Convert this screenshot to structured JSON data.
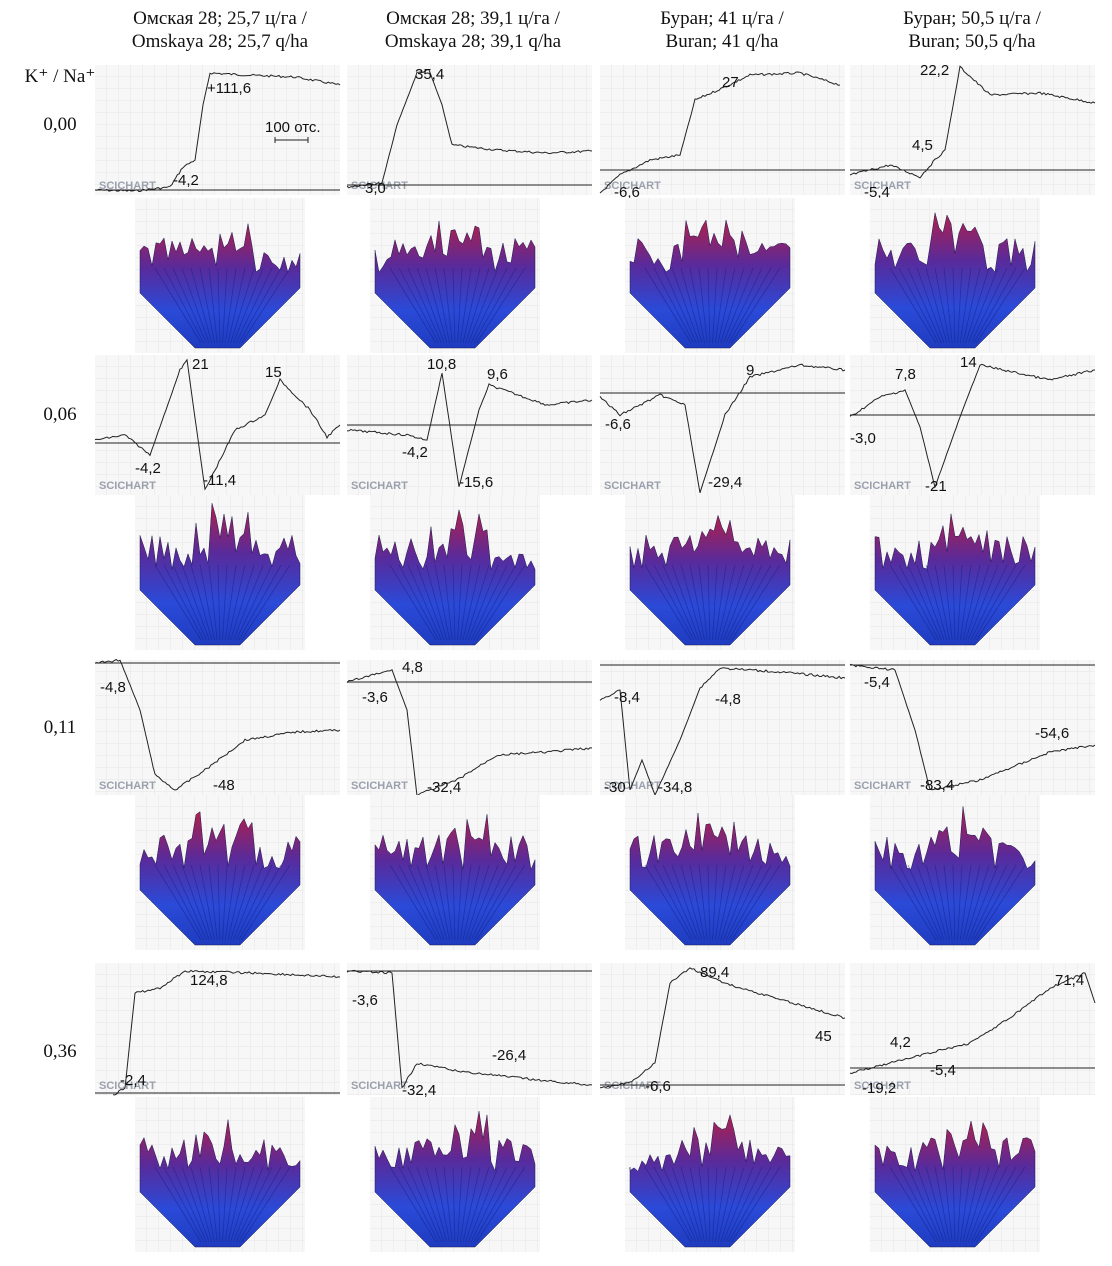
{
  "columns": [
    {
      "line1": "Омская 28; 25,7 ц/га /",
      "line2": "Omskaya 28; 25,7 q/ha"
    },
    {
      "line1": "Омская 28; 39,1 ц/га /",
      "line2": "Omskaya 28; 39,1 q/ha"
    },
    {
      "line1": "Буран; 41 ц/га /",
      "line2": "Buran; 41 q/ha"
    },
    {
      "line1": "Буран; 50,5 ц/га /",
      "line2": "Buran; 50,5 q/ha"
    }
  ],
  "row_header": "K⁺ / Na⁺",
  "scale_bar": "100 отс.",
  "watermark": "SCICHART",
  "rows": [
    {
      "label": "0,00",
      "panels": [
        {
          "annotations": [
            "+111,6",
            "-4,2"
          ]
        },
        {
          "annotations": [
            "35,4",
            "3,0"
          ]
        },
        {
          "annotations": [
            "27",
            "-6,6"
          ]
        },
        {
          "annotations": [
            "22,2",
            "4,5",
            "-5,4"
          ]
        }
      ]
    },
    {
      "label": "0,06",
      "panels": [
        {
          "annotations": [
            "21",
            "15",
            "-4,2",
            "-11,4"
          ]
        },
        {
          "annotations": [
            "10,8",
            "9,6",
            "-4,2",
            "-15,6"
          ]
        },
        {
          "annotations": [
            "9",
            "-6,6",
            "-29,4"
          ]
        },
        {
          "annotations": [
            "7,8",
            "14",
            "-3,0",
            "-21"
          ]
        }
      ]
    },
    {
      "label": "0,11",
      "panels": [
        {
          "annotations": [
            "-4,8",
            "-48"
          ]
        },
        {
          "annotations": [
            "4,8",
            "-3,6",
            "-32,4"
          ]
        },
        {
          "annotations": [
            "-8,4",
            "-4,8",
            "-30",
            "-34,8"
          ]
        },
        {
          "annotations": [
            "-5,4",
            "-54,6",
            "-83,4"
          ]
        }
      ]
    },
    {
      "label": "0,36",
      "panels": [
        {
          "annotations": [
            "124,8",
            "-2,4"
          ]
        },
        {
          "annotations": [
            "-3,6",
            "-26,4",
            "-32,4"
          ]
        },
        {
          "annotations": [
            "89,4",
            "45",
            "-6,6"
          ]
        },
        {
          "annotations": [
            "71,4",
            "4,2",
            "-5,4",
            "-19,2"
          ]
        }
      ]
    }
  ]
}
